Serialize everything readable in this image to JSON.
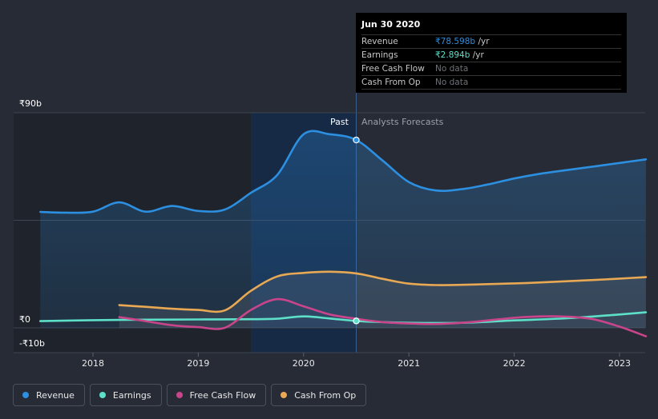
{
  "chart_data": {
    "type": "line",
    "y_unit_prefix": "₹",
    "y_unit_suffix": "b",
    "ylim": [
      -10,
      90
    ],
    "xlim": [
      2017.5,
      2023.25
    ],
    "y_tick_labels": [
      "₹90b",
      "₹0",
      "-₹10b"
    ],
    "x_tick_labels": [
      "2018",
      "2019",
      "2020",
      "2021",
      "2022",
      "2023"
    ],
    "x_ticks": [
      2018,
      2019,
      2020,
      2021,
      2022,
      2023
    ],
    "past_label": "Past",
    "forecast_label": "Analysts Forecasts",
    "past_end": 2020.5,
    "shaded_highlight_start": 2019.5,
    "series": [
      {
        "name": "Revenue",
        "color": "#2d8fe0",
        "points": [
          [
            2017.5,
            48.5
          ],
          [
            2017.75,
            48.2
          ],
          [
            2018.0,
            48.6
          ],
          [
            2018.25,
            52.5
          ],
          [
            2018.5,
            48.6
          ],
          [
            2018.75,
            51.0
          ],
          [
            2019.0,
            48.9
          ],
          [
            2019.25,
            49.5
          ],
          [
            2019.5,
            56.5
          ],
          [
            2019.75,
            64.0
          ],
          [
            2020.0,
            81.0
          ],
          [
            2020.25,
            81.0
          ],
          [
            2020.5,
            78.6
          ],
          [
            2020.75,
            70.0
          ],
          [
            2021.0,
            61.0
          ],
          [
            2021.25,
            57.5
          ],
          [
            2021.5,
            58.0
          ],
          [
            2021.75,
            60.0
          ],
          [
            2022.0,
            62.5
          ],
          [
            2022.25,
            64.5
          ],
          [
            2022.5,
            66.0
          ],
          [
            2022.75,
            67.5
          ],
          [
            2023.0,
            69.0
          ],
          [
            2023.25,
            70.5
          ]
        ]
      },
      {
        "name": "Earnings",
        "color": "#5ee0c8",
        "points": [
          [
            2017.5,
            2.8
          ],
          [
            2018.0,
            3.2
          ],
          [
            2018.5,
            3.4
          ],
          [
            2019.0,
            3.5
          ],
          [
            2019.5,
            3.6
          ],
          [
            2019.75,
            3.8
          ],
          [
            2020.0,
            4.8
          ],
          [
            2020.25,
            3.9
          ],
          [
            2020.5,
            2.894
          ],
          [
            2020.75,
            2.4
          ],
          [
            2021.0,
            2.1
          ],
          [
            2021.5,
            2.1
          ],
          [
            2022.0,
            3.1
          ],
          [
            2022.5,
            4.0
          ],
          [
            2023.0,
            5.6
          ],
          [
            2023.25,
            6.5
          ]
        ]
      },
      {
        "name": "Free Cash Flow",
        "color": "#c9458b",
        "points": [
          [
            2018.25,
            4.5
          ],
          [
            2018.5,
            2.8
          ],
          [
            2018.75,
            1.1
          ],
          [
            2019.0,
            0.3
          ],
          [
            2019.25,
            0.0
          ],
          [
            2019.5,
            7.5
          ],
          [
            2019.75,
            12.0
          ],
          [
            2020.0,
            9.0
          ],
          [
            2020.25,
            5.6
          ],
          [
            2020.5,
            3.8
          ],
          [
            2020.75,
            2.4
          ],
          [
            2021.0,
            1.8
          ],
          [
            2021.25,
            1.6
          ],
          [
            2021.5,
            2.1
          ],
          [
            2021.75,
            3.1
          ],
          [
            2022.0,
            4.2
          ],
          [
            2022.25,
            4.8
          ],
          [
            2022.5,
            4.7
          ],
          [
            2022.75,
            3.6
          ],
          [
            2023.0,
            0.5
          ],
          [
            2023.25,
            -3.5
          ]
        ]
      },
      {
        "name": "Cash From Op",
        "color": "#e8a854",
        "points": [
          [
            2018.25,
            9.5
          ],
          [
            2018.5,
            8.8
          ],
          [
            2018.75,
            8.0
          ],
          [
            2019.0,
            7.5
          ],
          [
            2019.25,
            7.3
          ],
          [
            2019.5,
            15.5
          ],
          [
            2019.75,
            21.5
          ],
          [
            2020.0,
            23.0
          ],
          [
            2020.25,
            23.5
          ],
          [
            2020.5,
            22.8
          ],
          [
            2020.75,
            20.5
          ],
          [
            2021.0,
            18.5
          ],
          [
            2021.25,
            17.9
          ],
          [
            2021.5,
            18.0
          ],
          [
            2021.75,
            18.3
          ],
          [
            2022.0,
            18.6
          ],
          [
            2022.25,
            19.0
          ],
          [
            2022.5,
            19.5
          ],
          [
            2022.75,
            20.0
          ],
          [
            2023.0,
            20.6
          ],
          [
            2023.25,
            21.2
          ]
        ]
      }
    ],
    "markers": [
      {
        "series": "Revenue",
        "x": 2020.5,
        "y": 78.6
      },
      {
        "series": "Earnings",
        "x": 2020.5,
        "y": 2.894
      }
    ]
  },
  "tooltip": {
    "date": "Jun 30 2020",
    "rows": [
      {
        "label": "Revenue",
        "value": "₹78.598b",
        "unit": "/yr",
        "color": "#2d8fe0"
      },
      {
        "label": "Earnings",
        "value": "₹2.894b",
        "unit": "/yr",
        "color": "#5ee0c8"
      },
      {
        "label": "Free Cash Flow",
        "value": "No data",
        "unit": "",
        "color": ""
      },
      {
        "label": "Cash From Op",
        "value": "No data",
        "unit": "",
        "color": ""
      }
    ]
  },
  "legend": [
    {
      "label": "Revenue",
      "color": "#2d8fe0"
    },
    {
      "label": "Earnings",
      "color": "#5ee0c8"
    },
    {
      "label": "Free Cash Flow",
      "color": "#c9458b"
    },
    {
      "label": "Cash From Op",
      "color": "#e8a854"
    }
  ]
}
